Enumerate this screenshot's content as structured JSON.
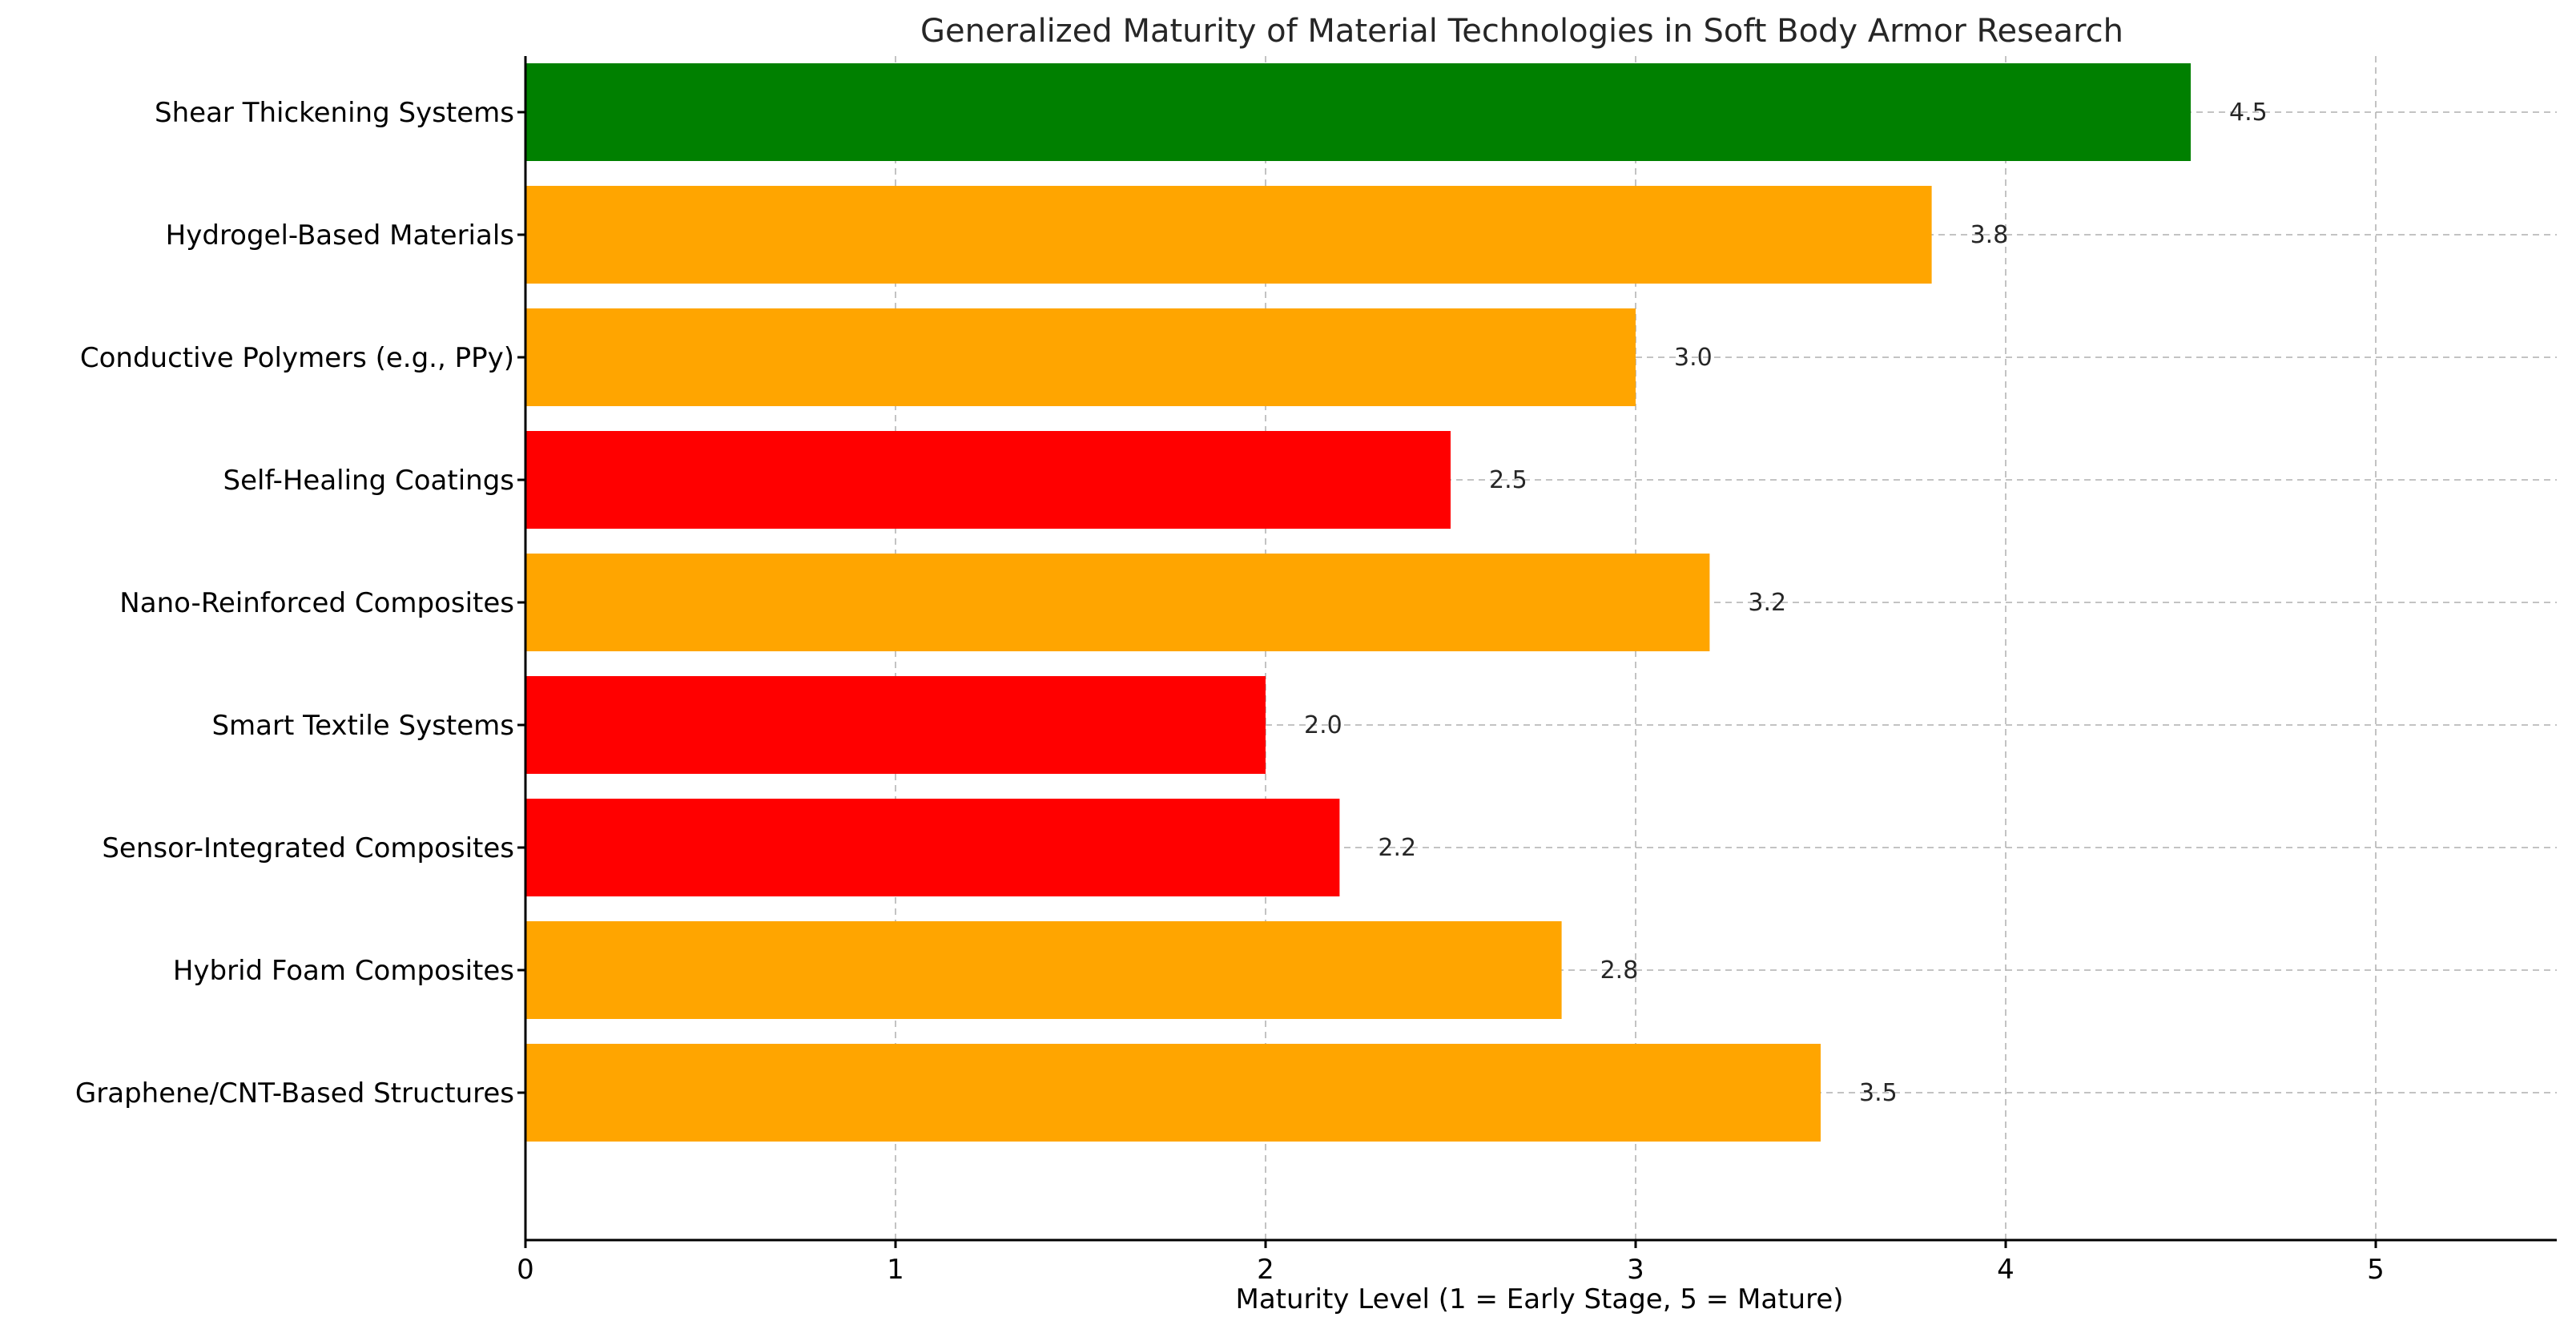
{
  "chart_data": {
    "type": "bar",
    "orientation": "horizontal",
    "title": "Generalized Maturity of Material Technologies in Soft Body Armor Research",
    "xlabel": "Maturity Level (1 = Early Stage, 5 = Mature)",
    "ylabel": "",
    "xlim": [
      0,
      5.5
    ],
    "xticks": [
      0,
      1,
      2,
      3,
      4,
      5
    ],
    "grid": true,
    "categories": [
      "Shear Thickening Systems",
      "Hydrogel-Based Materials",
      "Conductive Polymers (e.g., PPy)",
      "Self-Healing Coatings",
      "Nano-Reinforced Composites",
      "Smart Textile Systems",
      "Sensor-Integrated Composites",
      "Hybrid Foam Composites",
      "Graphene/CNT-Based Structures"
    ],
    "values": [
      4.5,
      3.8,
      3.0,
      2.5,
      3.2,
      2.0,
      2.2,
      2.8,
      3.5
    ],
    "value_labels": [
      "4.5",
      "3.8",
      "3.0",
      "2.5",
      "3.2",
      "2.0",
      "2.2",
      "2.8",
      "3.5"
    ],
    "bar_colors": [
      "#008000",
      "#ffa500",
      "#ffa500",
      "#ff0000",
      "#ffa500",
      "#ff0000",
      "#ff0000",
      "#ffa500",
      "#ffa500"
    ]
  }
}
